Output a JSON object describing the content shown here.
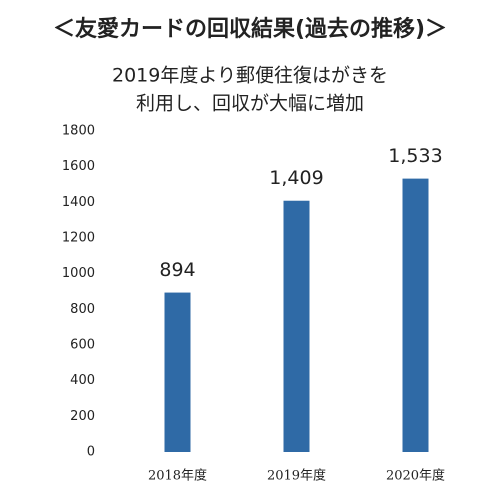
{
  "chart_data": {
    "type": "bar",
    "title": "＜友愛カードの回収結果(過去の推移)＞",
    "subtitle": [
      "2019年度より郵便往復はがきを",
      "利用し、回収が大幅に増加"
    ],
    "categories": [
      "2018年度",
      "2019年度",
      "2020年度"
    ],
    "values": [
      894,
      1409,
      1533
    ],
    "value_labels": [
      "894",
      "1,409",
      "1,533"
    ],
    "color": "#2f6aa6",
    "ylim": [
      0,
      1800
    ],
    "yticks": [
      0,
      200,
      400,
      600,
      800,
      1000,
      1200,
      1400,
      1600,
      1800
    ],
    "grid": false
  }
}
